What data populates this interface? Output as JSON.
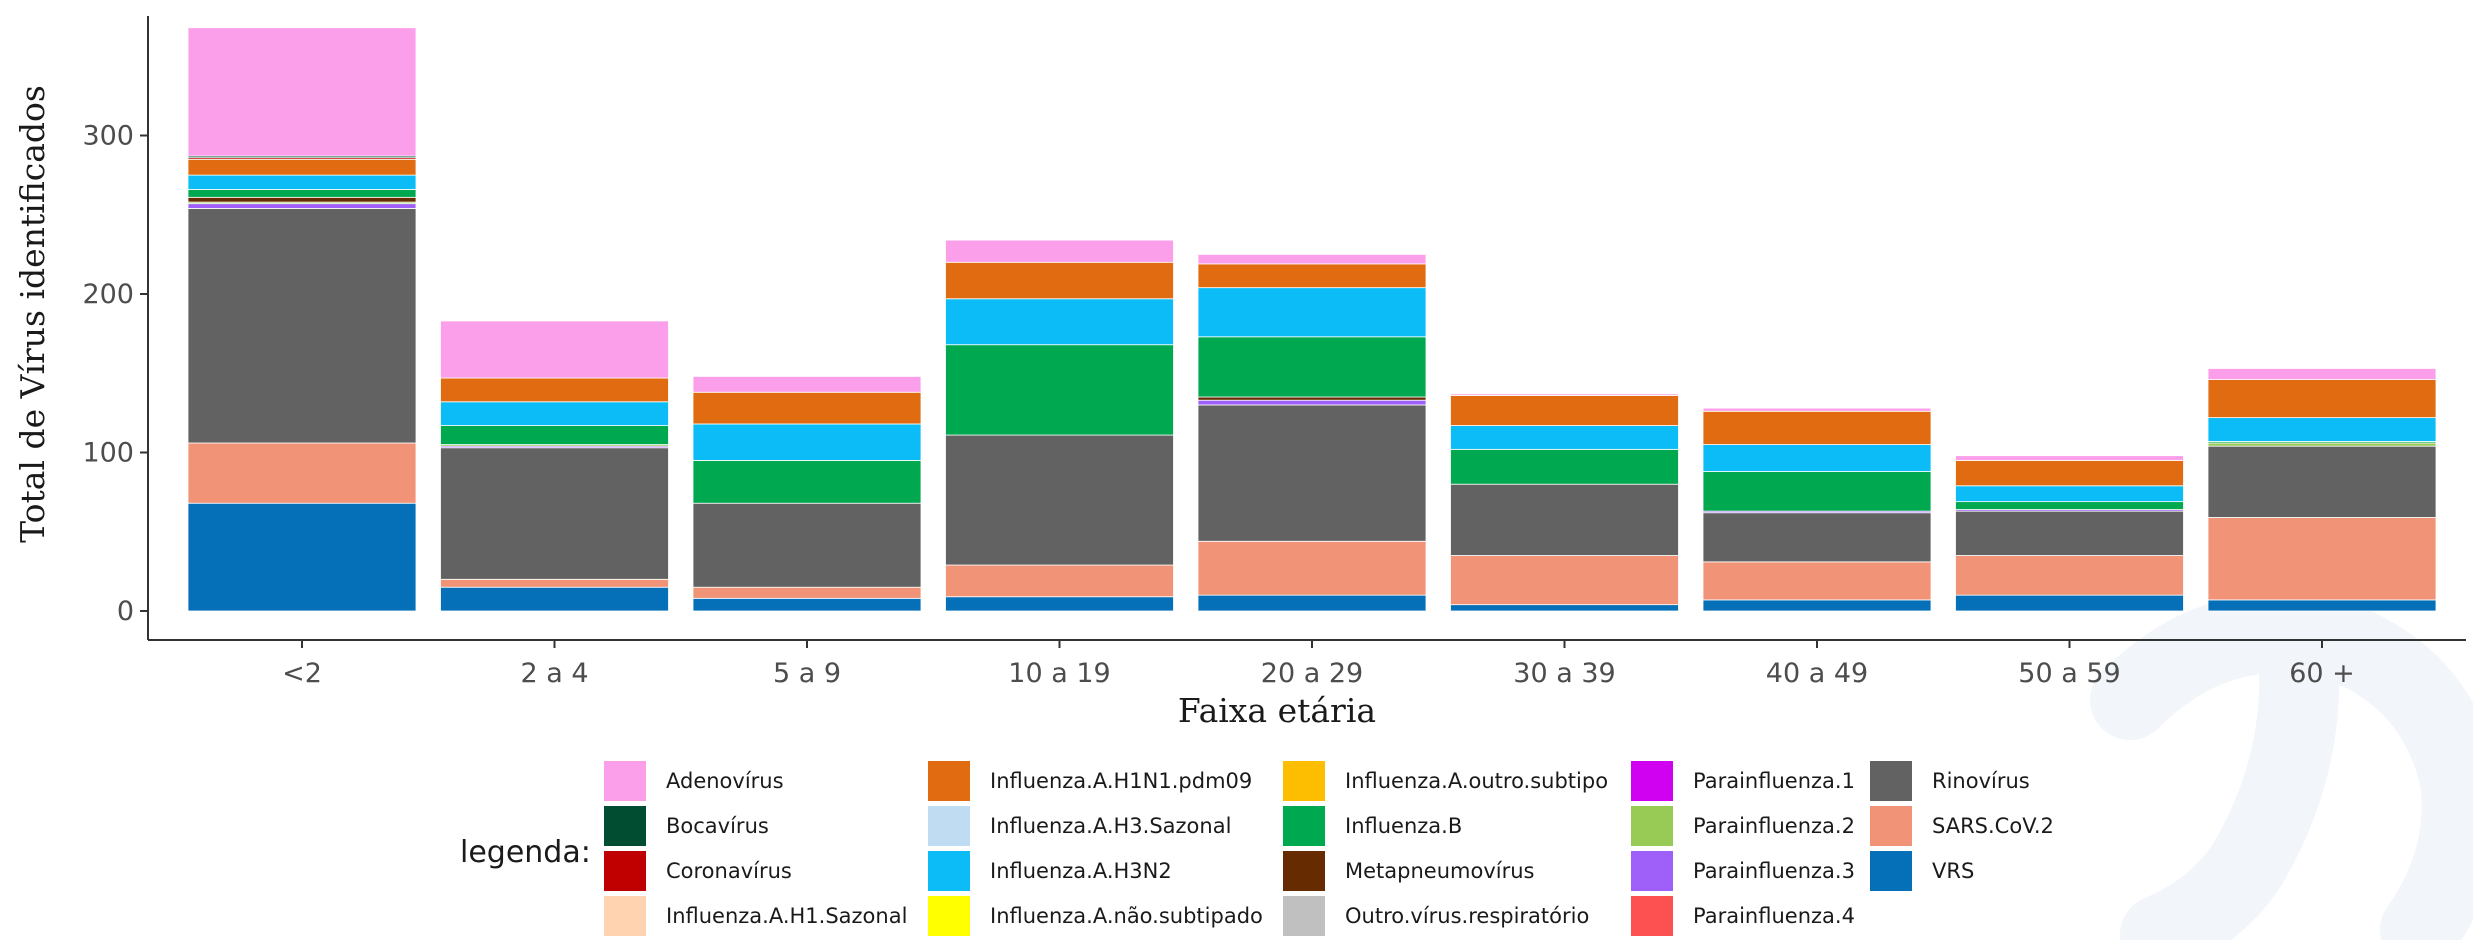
{
  "chart_data": {
    "type": "bar",
    "stacked": true,
    "xlabel": "Faixa etária",
    "ylabel": "Total de Vírus identificados",
    "ylim": [
      0,
      368
    ],
    "yticks": [
      0,
      100,
      200,
      300
    ],
    "grid": false,
    "legend_title": "legenda:",
    "legend_position": "bottom",
    "categories": [
      "<2",
      "2 a 4",
      "5 a 9",
      "10 a 19",
      "20 a 29",
      "30 a 39",
      "40 a 49",
      "50 a 59",
      "60 +"
    ],
    "series": [
      {
        "name": "VRS",
        "color": "#0570b8",
        "values": [
          68,
          15,
          8,
          9,
          10,
          4,
          7,
          10,
          7
        ]
      },
      {
        "name": "SARS.CoV.2",
        "color": "#f09376",
        "values": [
          38,
          5,
          7,
          20,
          34,
          31,
          24,
          25,
          52
        ]
      },
      {
        "name": "Rinovírus",
        "color": "#626262",
        "values": [
          148,
          83,
          53,
          82,
          86,
          45,
          31,
          28,
          45
        ]
      },
      {
        "name": "Parainfluenza.4",
        "color": "#fd5050",
        "values": [
          0,
          0,
          0,
          0,
          0,
          0,
          0,
          0,
          0
        ]
      },
      {
        "name": "Parainfluenza.3",
        "color": "#9f60fa",
        "values": [
          3,
          1,
          0,
          0,
          3,
          0,
          1,
          1,
          0
        ]
      },
      {
        "name": "Parainfluenza.2",
        "color": "#98cb56",
        "values": [
          1,
          1,
          0,
          0,
          0,
          0,
          0,
          0,
          2
        ]
      },
      {
        "name": "Parainfluenza.1",
        "color": "#d000f0",
        "values": [
          0,
          0,
          0,
          0,
          0,
          0,
          0,
          0,
          0
        ]
      },
      {
        "name": "Outro.vírus.respiratório",
        "color": "#c0c0c0",
        "values": [
          0,
          0,
          0,
          0,
          0,
          0,
          0,
          0,
          0
        ]
      },
      {
        "name": "Metapneumovírus",
        "color": "#662b00",
        "values": [
          3,
          0,
          0,
          0,
          2,
          0,
          0,
          0,
          0
        ]
      },
      {
        "name": "Influenza.B",
        "color": "#00a84f",
        "values": [
          5,
          12,
          27,
          57,
          38,
          22,
          25,
          5,
          1
        ]
      },
      {
        "name": "Influenza.A.outro.subtipo",
        "color": "#fdbd00",
        "values": [
          0,
          0,
          0,
          0,
          0,
          0,
          0,
          0,
          0
        ]
      },
      {
        "name": "Influenza.A.não.subtipado",
        "color": "#ffff00",
        "values": [
          0,
          0,
          0,
          0,
          0,
          0,
          0,
          0,
          0
        ]
      },
      {
        "name": "Influenza.A.H3N2",
        "color": "#0bbcf6",
        "values": [
          9,
          15,
          23,
          29,
          31,
          15,
          17,
          10,
          15
        ]
      },
      {
        "name": "Influenza.A.H3.Sazonal",
        "color": "#bfdcf2",
        "values": [
          0,
          0,
          0,
          0,
          0,
          0,
          0,
          0,
          0
        ]
      },
      {
        "name": "Influenza.A.H1N1.pdm09",
        "color": "#e06b10",
        "values": [
          10,
          15,
          20,
          23,
          15,
          19,
          21,
          16,
          24
        ]
      },
      {
        "name": "Influenza.A.H1.Sazonal",
        "color": "#ffd2b0",
        "values": [
          0,
          0,
          0,
          0,
          0,
          0,
          0,
          0,
          0
        ]
      },
      {
        "name": "Coronavírus",
        "color": "#c00000",
        "values": [
          1,
          0,
          0,
          0,
          0,
          0,
          0,
          0,
          0
        ]
      },
      {
        "name": "Bocavírus",
        "color": "#004d31",
        "values": [
          1,
          0,
          0,
          0,
          0,
          0,
          0,
          0,
          0
        ]
      },
      {
        "name": "Adenovírus",
        "color": "#fc9fea",
        "values": [
          81,
          36,
          10,
          14,
          6,
          1,
          2,
          3,
          7
        ]
      }
    ],
    "legend_order": [
      "Adenovírus",
      "Bocavírus",
      "Coronavírus",
      "Influenza.A.H1.Sazonal",
      "Influenza.A.H1N1.pdm09",
      "Influenza.A.H3.Sazonal",
      "Influenza.A.H3N2",
      "Influenza.A.não.subtipado",
      "Influenza.A.outro.subtipo",
      "Influenza.B",
      "Metapneumovírus",
      "Outro.vírus.respiratório",
      "Parainfluenza.1",
      "Parainfluenza.2",
      "Parainfluenza.3",
      "Parainfluenza.4",
      "Rinovírus",
      "SARS.CoV.2",
      "VRS"
    ]
  }
}
